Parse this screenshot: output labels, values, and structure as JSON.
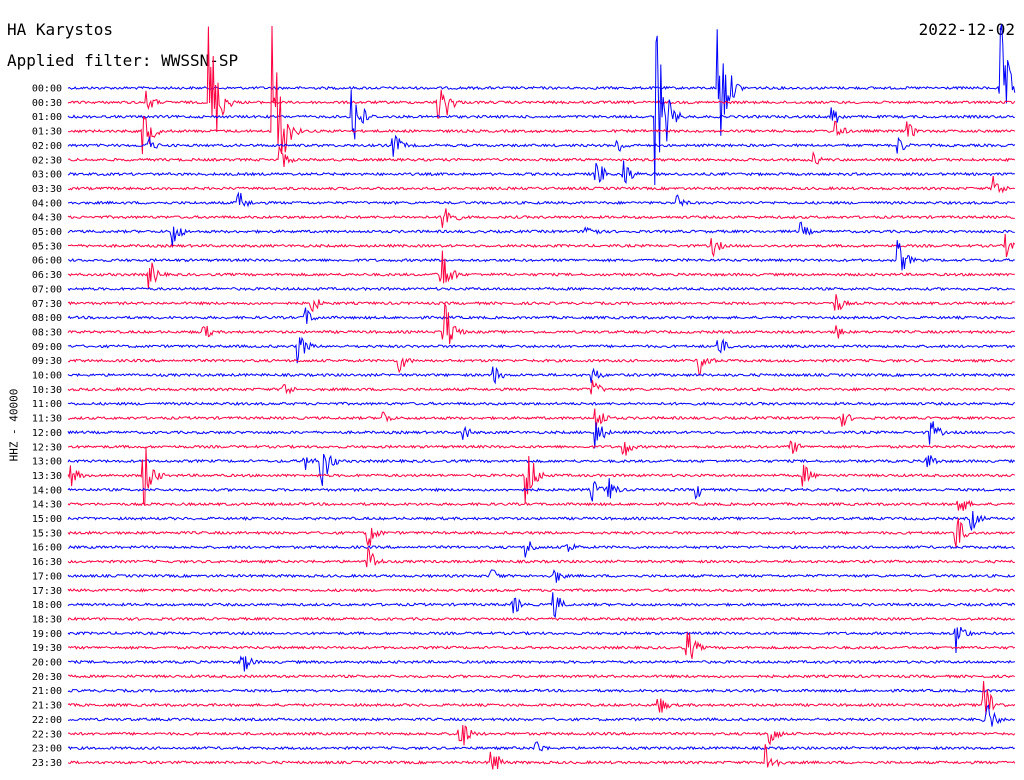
{
  "header": {
    "station": "HA Karystos",
    "filter": "Applied filter: WWSSN-SP",
    "date": "2022-12-02"
  },
  "chart_data": {
    "type": "line",
    "title": "HA Karystos",
    "subtitle": "Applied filter: WWSSN-SP",
    "ylabel": "HHZ - 40000",
    "xlabel": "",
    "row_labels": [
      "00:00",
      "00:30",
      "01:00",
      "01:30",
      "02:00",
      "02:30",
      "03:00",
      "03:30",
      "04:00",
      "04:30",
      "05:00",
      "05:30",
      "06:00",
      "06:30",
      "07:00",
      "07:30",
      "08:00",
      "08:30",
      "09:00",
      "09:30",
      "10:00",
      "10:30",
      "11:00",
      "11:30",
      "12:00",
      "12:30",
      "13:00",
      "13:30",
      "14:00",
      "14:30",
      "15:00",
      "15:30",
      "16:00",
      "16:30",
      "17:00",
      "17:30",
      "18:00",
      "18:30",
      "19:00",
      "19:30",
      "20:00",
      "20:30",
      "21:00",
      "21:30",
      "22:00",
      "22:30",
      "23:00",
      "23:30"
    ],
    "row_colors": [
      "#0000ff",
      "#ff0040"
    ],
    "minutes_per_row": 30,
    "events": [
      {
        "row": 0,
        "minute": 20.6,
        "amplitude": 80
      },
      {
        "row": 0,
        "minute": 29.5,
        "amplitude": 80
      },
      {
        "row": 1,
        "minute": 2.5,
        "amplitude": 12
      },
      {
        "row": 1,
        "minute": 4.5,
        "amplitude": 85
      },
      {
        "row": 1,
        "minute": 11.7,
        "amplitude": 25
      },
      {
        "row": 1,
        "minute": 12.0,
        "amplitude": 14
      },
      {
        "row": 2,
        "minute": 9.0,
        "amplitude": 45
      },
      {
        "row": 2,
        "minute": 18.6,
        "amplitude": 120
      },
      {
        "row": 2,
        "minute": 24.2,
        "amplitude": 13
      },
      {
        "row": 3,
        "minute": 2.4,
        "amplitude": 30
      },
      {
        "row": 3,
        "minute": 6.5,
        "amplitude": 120
      },
      {
        "row": 3,
        "minute": 24.3,
        "amplitude": 12
      },
      {
        "row": 3,
        "minute": 26.6,
        "amplitude": 10
      },
      {
        "row": 4,
        "minute": 2.5,
        "amplitude": 12
      },
      {
        "row": 4,
        "minute": 10.3,
        "amplitude": 16
      },
      {
        "row": 4,
        "minute": 17.4,
        "amplitude": 10
      },
      {
        "row": 4,
        "minute": 26.3,
        "amplitude": 10
      },
      {
        "row": 5,
        "minute": 6.7,
        "amplitude": 15
      },
      {
        "row": 5,
        "minute": 23.6,
        "amplitude": 8
      },
      {
        "row": 6,
        "minute": 16.7,
        "amplitude": 20
      },
      {
        "row": 6,
        "minute": 17.6,
        "amplitude": 16
      },
      {
        "row": 7,
        "minute": 29.3,
        "amplitude": 15
      },
      {
        "row": 8,
        "minute": 5.4,
        "amplitude": 14
      },
      {
        "row": 8,
        "minute": 19.3,
        "amplitude": 8
      },
      {
        "row": 9,
        "minute": 11.9,
        "amplitude": 25
      },
      {
        "row": 10,
        "minute": 3.3,
        "amplitude": 18
      },
      {
        "row": 10,
        "minute": 16.4,
        "amplitude": 15
      },
      {
        "row": 10,
        "minute": 23.2,
        "amplitude": 10
      },
      {
        "row": 11,
        "minute": 20.4,
        "amplitude": 12
      },
      {
        "row": 11,
        "minute": 29.7,
        "amplitude": 12
      },
      {
        "row": 12,
        "minute": 26.3,
        "amplitude": 20
      },
      {
        "row": 13,
        "minute": 2.6,
        "amplitude": 16
      },
      {
        "row": 13,
        "minute": 11.8,
        "amplitude": 35
      },
      {
        "row": 15,
        "minute": 7.7,
        "amplitude": 12
      },
      {
        "row": 15,
        "minute": 24.3,
        "amplitude": 12
      },
      {
        "row": 16,
        "minute": 7.5,
        "amplitude": 12
      },
      {
        "row": 17,
        "minute": 4.3,
        "amplitude": 10
      },
      {
        "row": 17,
        "minute": 11.9,
        "amplitude": 40
      },
      {
        "row": 17,
        "minute": 24.3,
        "amplitude": 10
      },
      {
        "row": 18,
        "minute": 7.3,
        "amplitude": 18
      },
      {
        "row": 18,
        "minute": 20.6,
        "amplitude": 12
      },
      {
        "row": 19,
        "minute": 10.5,
        "amplitude": 12
      },
      {
        "row": 19,
        "minute": 20.0,
        "amplitude": 16
      },
      {
        "row": 20,
        "minute": 13.5,
        "amplitude": 10
      },
      {
        "row": 20,
        "minute": 16.6,
        "amplitude": 10
      },
      {
        "row": 21,
        "minute": 6.8,
        "amplitude": 12
      },
      {
        "row": 21,
        "minute": 16.6,
        "amplitude": 12
      },
      {
        "row": 23,
        "minute": 10.0,
        "amplitude": 8
      },
      {
        "row": 23,
        "minute": 16.7,
        "amplitude": 18
      },
      {
        "row": 23,
        "minute": 24.5,
        "amplitude": 10
      },
      {
        "row": 24,
        "minute": 12.5,
        "amplitude": 10
      },
      {
        "row": 24,
        "minute": 16.7,
        "amplitude": 18
      },
      {
        "row": 24,
        "minute": 27.3,
        "amplitude": 16
      },
      {
        "row": 25,
        "minute": 17.6,
        "amplitude": 12
      },
      {
        "row": 25,
        "minute": 22.9,
        "amplitude": 10
      },
      {
        "row": 26,
        "minute": 7.5,
        "amplitude": 10
      },
      {
        "row": 26,
        "minute": 8.0,
        "amplitude": 35
      },
      {
        "row": 26,
        "minute": 27.2,
        "amplitude": 12
      },
      {
        "row": 27,
        "minute": 0.1,
        "amplitude": 12
      },
      {
        "row": 27,
        "minute": 2.4,
        "amplitude": 38
      },
      {
        "row": 27,
        "minute": 14.5,
        "amplitude": 40
      },
      {
        "row": 27,
        "minute": 23.3,
        "amplitude": 12
      },
      {
        "row": 28,
        "minute": 16.6,
        "amplitude": 12
      },
      {
        "row": 28,
        "minute": 17.1,
        "amplitude": 14
      },
      {
        "row": 28,
        "minute": 19.9,
        "amplitude": 10
      },
      {
        "row": 29,
        "minute": 28.2,
        "amplitude": 14
      },
      {
        "row": 30,
        "minute": 28.6,
        "amplitude": 14
      },
      {
        "row": 31,
        "minute": 9.5,
        "amplitude": 18
      },
      {
        "row": 31,
        "minute": 28.1,
        "amplitude": 22
      },
      {
        "row": 32,
        "minute": 14.5,
        "amplitude": 12
      },
      {
        "row": 32,
        "minute": 15.8,
        "amplitude": 10
      },
      {
        "row": 33,
        "minute": 9.5,
        "amplitude": 18
      },
      {
        "row": 34,
        "minute": 13.4,
        "amplitude": 10
      },
      {
        "row": 34,
        "minute": 15.4,
        "amplitude": 10
      },
      {
        "row": 36,
        "minute": 14.1,
        "amplitude": 12
      },
      {
        "row": 36,
        "minute": 15.4,
        "amplitude": 14
      },
      {
        "row": 38,
        "minute": 28.1,
        "amplitude": 20
      },
      {
        "row": 39,
        "minute": 19.6,
        "amplitude": 22
      },
      {
        "row": 40,
        "minute": 5.5,
        "amplitude": 16
      },
      {
        "row": 43,
        "minute": 18.7,
        "amplitude": 12
      },
      {
        "row": 43,
        "minute": 29.0,
        "amplitude": 30
      },
      {
        "row": 44,
        "minute": 29.0,
        "amplitude": 30
      },
      {
        "row": 45,
        "minute": 12.4,
        "amplitude": 22
      },
      {
        "row": 45,
        "minute": 22.2,
        "amplitude": 16
      },
      {
        "row": 46,
        "minute": 14.8,
        "amplitude": 10
      },
      {
        "row": 47,
        "minute": 13.4,
        "amplitude": 18
      },
      {
        "row": 47,
        "minute": 22.1,
        "amplitude": 22
      }
    ]
  }
}
